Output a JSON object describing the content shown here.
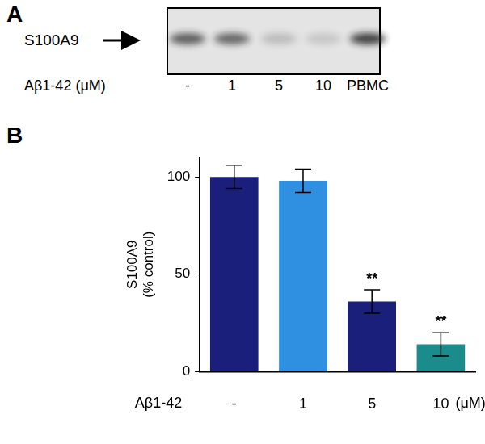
{
  "panel_a": {
    "panel_label": "A",
    "protein": "S100A9",
    "treatment_label": "Aβ1-42 (μM)",
    "lanes": [
      "-",
      "1",
      "5",
      "10",
      "PBMC"
    ],
    "band_intensity": [
      0.7,
      0.65,
      0.2,
      0.15,
      0.85
    ]
  },
  "chart_data": {
    "type": "bar",
    "panel_label": "B",
    "categories": [
      "-",
      "1",
      "5",
      "10"
    ],
    "values": [
      100,
      98,
      36,
      14
    ],
    "errors": [
      6,
      6,
      6,
      6
    ],
    "colors": [
      "#1b1f7c",
      "#2f8fe0",
      "#1b1f7c",
      "#1a8c8c"
    ],
    "xlabel": "Aβ1-42",
    "x_unit": "(μM)",
    "ylabel": [
      "S100A9",
      "(% control)"
    ],
    "ylim": [
      0,
      110
    ],
    "yticks": [
      0,
      50,
      100
    ],
    "grid": false,
    "annotations": [
      {
        "category": "5",
        "text": "**"
      },
      {
        "category": "10",
        "text": "**"
      }
    ]
  }
}
